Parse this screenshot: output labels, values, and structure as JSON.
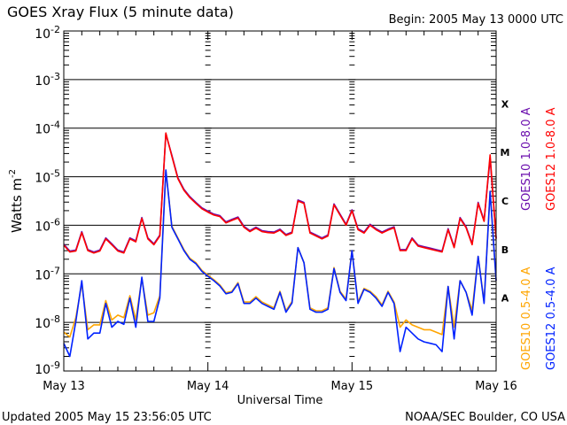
{
  "chart_data": {
    "type": "line",
    "title": "GOES Xray Flux (5 minute data)",
    "begin_label": "Begin:  2005 May 13 0000 UTC",
    "xlabel": "Universal Time",
    "ylabel": "Watts m",
    "ylabel_sup": "-2",
    "x_ticks": [
      "May 13",
      "May 14",
      "May 15",
      "May 16"
    ],
    "x_range_hours": [
      0,
      72
    ],
    "y_scale": "log",
    "ylim_log10": [
      -9,
      -2
    ],
    "y_ticks": [
      {
        "base": "10",
        "exp": "-2"
      },
      {
        "base": "10",
        "exp": "-3"
      },
      {
        "base": "10",
        "exp": "-4"
      },
      {
        "base": "10",
        "exp": "-5"
      },
      {
        "base": "10",
        "exp": "-6"
      },
      {
        "base": "10",
        "exp": "-7"
      },
      {
        "base": "10",
        "exp": "-8"
      },
      {
        "base": "10",
        "exp": "-9"
      }
    ],
    "flare_classes": [
      "X",
      "M",
      "C",
      "B",
      "A"
    ],
    "grid": "horizontal at each decade",
    "x_hours_step": 1,
    "series": [
      {
        "name": "GOES10 1.0-8.0 A",
        "color": "#6a0dad",
        "values_log10": [
          -6.39,
          -6.53,
          -6.51,
          -6.13,
          -6.5,
          -6.55,
          -6.51,
          -6.26,
          -6.38,
          -6.51,
          -6.55,
          -6.26,
          -6.32,
          -5.84,
          -6.26,
          -6.38,
          -6.2,
          -4.12,
          -4.56,
          -5.02,
          -5.26,
          -5.41,
          -5.53,
          -5.64,
          -5.71,
          -5.77,
          -5.8,
          -5.93,
          -5.88,
          -5.83,
          -6.02,
          -6.11,
          -6.04,
          -6.11,
          -6.13,
          -6.14,
          -6.08,
          -6.19,
          -6.14,
          -5.48,
          -5.53,
          -6.14,
          -6.2,
          -6.26,
          -6.2,
          -5.56,
          -5.77,
          -5.98,
          -5.68,
          -6.07,
          -6.14,
          -5.98,
          -6.07,
          -6.14,
          -6.08,
          -6.03,
          -6.5,
          -6.5,
          -6.26,
          -6.41,
          -6.44,
          -6.47,
          -6.5,
          -6.53,
          -6.07,
          -6.44,
          -5.84,
          -6.03,
          -6.38,
          -5.53,
          -5.9,
          -4.62,
          -6.26
        ]
      },
      {
        "name": "GOES12 1.0-8.0 A",
        "color": "#ff0000",
        "values_log10": [
          -6.41,
          -6.55,
          -6.53,
          -6.15,
          -6.52,
          -6.57,
          -6.53,
          -6.28,
          -6.4,
          -6.53,
          -6.57,
          -6.28,
          -6.34,
          -5.86,
          -6.28,
          -6.4,
          -6.22,
          -4.1,
          -4.58,
          -5.04,
          -5.28,
          -5.43,
          -5.55,
          -5.66,
          -5.73,
          -5.79,
          -5.82,
          -5.95,
          -5.9,
          -5.85,
          -6.04,
          -6.13,
          -6.06,
          -6.13,
          -6.15,
          -6.16,
          -6.1,
          -6.21,
          -6.16,
          -5.5,
          -5.55,
          -6.16,
          -6.22,
          -6.28,
          -6.22,
          -5.58,
          -5.79,
          -6.0,
          -5.7,
          -6.09,
          -6.16,
          -6.0,
          -6.09,
          -6.16,
          -6.1,
          -6.05,
          -6.52,
          -6.52,
          -6.28,
          -6.43,
          -6.46,
          -6.49,
          -6.52,
          -6.55,
          -6.09,
          -6.46,
          -5.86,
          -6.05,
          -6.4,
          -5.55,
          -5.92,
          -4.55,
          -6.28
        ]
      },
      {
        "name": "GOES10 0.5-4.0 A",
        "color": "#ffa500",
        "values_log10": [
          -8.2,
          -8.3,
          -7.9,
          -7.2,
          -8.15,
          -8.05,
          -8.05,
          -7.55,
          -7.95,
          -7.85,
          -7.9,
          -7.45,
          -7.95,
          -7.1,
          -7.85,
          -7.8,
          -7.45,
          -4.88,
          -6.02,
          -6.26,
          -6.5,
          -6.68,
          -6.77,
          -6.93,
          -7.03,
          -7.12,
          -7.23,
          -7.39,
          -7.36,
          -7.18,
          -7.58,
          -7.58,
          -7.47,
          -7.58,
          -7.64,
          -7.7,
          -7.36,
          -7.76,
          -7.57,
          -6.46,
          -6.77,
          -7.7,
          -7.76,
          -7.76,
          -7.7,
          -6.87,
          -7.36,
          -7.52,
          -6.52,
          -7.58,
          -7.3,
          -7.36,
          -7.47,
          -7.64,
          -7.36,
          -7.58,
          -8.1,
          -7.95,
          -8.05,
          -8.1,
          -8.15,
          -8.15,
          -8.2,
          -8.25,
          -7.26,
          -8.1,
          -7.14,
          -7.38,
          -7.75,
          -6.64,
          -7.58,
          -5.3,
          -7.14
        ]
      },
      {
        "name": "GOES12 0.5-4.0 A",
        "color": "#0022ff",
        "values_log10": [
          -8.43,
          -8.7,
          -7.98,
          -7.14,
          -8.34,
          -8.22,
          -8.22,
          -7.61,
          -8.1,
          -7.98,
          -8.04,
          -7.5,
          -8.1,
          -7.07,
          -7.98,
          -7.98,
          -7.5,
          -4.86,
          -6.04,
          -6.28,
          -6.52,
          -6.7,
          -6.79,
          -6.95,
          -7.05,
          -7.14,
          -7.25,
          -7.41,
          -7.38,
          -7.2,
          -7.61,
          -7.61,
          -7.5,
          -7.61,
          -7.67,
          -7.73,
          -7.38,
          -7.79,
          -7.6,
          -6.46,
          -6.77,
          -7.73,
          -7.79,
          -7.79,
          -7.73,
          -6.89,
          -7.38,
          -7.55,
          -6.52,
          -7.61,
          -7.32,
          -7.38,
          -7.5,
          -7.67,
          -7.38,
          -7.61,
          -8.6,
          -8.1,
          -8.22,
          -8.34,
          -8.4,
          -8.43,
          -8.46,
          -8.6,
          -7.26,
          -8.34,
          -7.14,
          -7.38,
          -7.85,
          -6.64,
          -7.61,
          -5.3,
          -7.14
        ]
      }
    ]
  },
  "footer": {
    "updated": "Updated 2005 May 15 23:56:05 UTC",
    "credit": "NOAA/SEC Boulder, CO USA"
  }
}
